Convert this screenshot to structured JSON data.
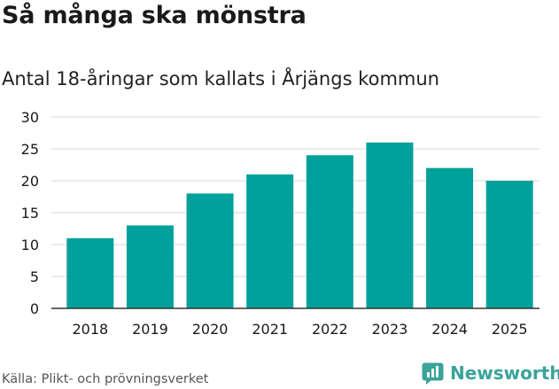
{
  "header": {
    "title": "Så många ska mönstra",
    "subtitle": "Antal 18-åringar som kallats i Årjängs kommun"
  },
  "footer": {
    "source": "Källa: Plikt- och prövningsverket",
    "brand": "Newsworthy"
  },
  "colors": {
    "bar": "#00a19a",
    "brand": "#3aa39a",
    "grid": "#d9d9d9",
    "axis": "#333333",
    "text": "#1a1a1a"
  },
  "chart_data": {
    "type": "bar",
    "title": "Så många ska mönstra",
    "subtitle": "Antal 18-åringar som kallats i Årjängs kommun",
    "categories": [
      "2018",
      "2019",
      "2020",
      "2021",
      "2022",
      "2023",
      "2024",
      "2025"
    ],
    "values": [
      11,
      13,
      18,
      21,
      24,
      26,
      22,
      20
    ],
    "ylim": [
      0,
      30
    ],
    "yticks": [
      "0",
      "5",
      "10",
      "15",
      "20",
      "25",
      "30"
    ],
    "xlabel": "",
    "ylabel": "",
    "grid": true,
    "legend": "none"
  }
}
